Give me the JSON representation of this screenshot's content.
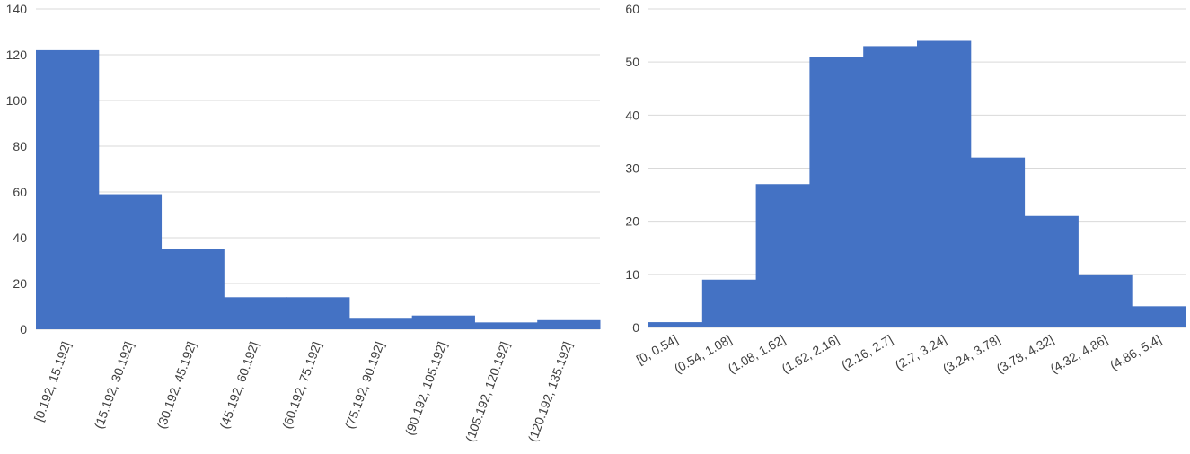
{
  "chart_data": [
    {
      "type": "bar",
      "categories": [
        "[0.192, 15.192]",
        "(15.192, 30.192]",
        "(30.192, 45.192]",
        "(45.192, 60.192]",
        "(60.192, 75.192]",
        "(75.192, 90.192]",
        "(90.192, 105.192]",
        "(105.192, 120.192]",
        "(120.192, 135.192]"
      ],
      "values": [
        122,
        59,
        35,
        14,
        14,
        5,
        6,
        3,
        4
      ],
      "color": "#4472c4",
      "ylim": [
        0,
        140
      ],
      "yticks": [
        0,
        20,
        40,
        60,
        80,
        100,
        120,
        140
      ],
      "grid": true
    },
    {
      "type": "bar",
      "categories": [
        "[0, 0.54]",
        "(0.54, 1.08]",
        "(1.08, 1.62]",
        "(1.62, 2.16]",
        "(2.16, 2.7]",
        "(2.7, 3.24]",
        "(3.24, 3.78]",
        "(3.78, 4.32]",
        "(4.32, 4.86]",
        "(4.86, 5.4]"
      ],
      "values": [
        1,
        9,
        27,
        51,
        53,
        54,
        32,
        21,
        10,
        4
      ],
      "color": "#4472c4",
      "ylim": [
        0,
        60
      ],
      "yticks": [
        0,
        10,
        20,
        30,
        40,
        50,
        60
      ],
      "grid": true
    }
  ]
}
